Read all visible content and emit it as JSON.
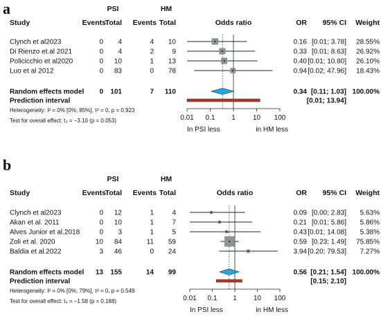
{
  "chart_data": [
    {
      "type": "forest",
      "panel_label": "a",
      "group1": "PSI",
      "group2": "HM",
      "headers": {
        "study": "Study",
        "events1": "Events",
        "total1": "Total",
        "events2": "Events",
        "total2": "Total",
        "plot": "Odds ratio",
        "or": "OR",
        "ci": "95% CI",
        "weight": "Weight"
      },
      "studies": [
        {
          "name": "Clynch et al2023",
          "e1": "0",
          "t1": "4",
          "e2": "4",
          "t2": "10",
          "or": 0.16,
          "lo": 0.01,
          "hi": 3.78,
          "or_text": "0.16",
          "ci_text": "[0.01;  3.78]",
          "weight_text": "28.55%",
          "weight": 28.55
        },
        {
          "name": "Di Rienzo et.al 2021",
          "e1": "0",
          "t1": "4",
          "e2": "2",
          "t2": "9",
          "or": 0.33,
          "lo": 0.01,
          "hi": 8.63,
          "or_text": "0.33",
          "ci_text": "[0.01;  8.63]",
          "weight_text": "26.92%",
          "weight": 26.92
        },
        {
          "name": "Policicchio et al2020",
          "e1": "0",
          "t1": "10",
          "e2": "1",
          "t2": "13",
          "or": 0.4,
          "lo": 0.01,
          "hi": 10.8,
          "or_text": "0.40",
          "ci_text": "[0.01; 10.80]",
          "weight_text": "26.10%",
          "weight": 26.1
        },
        {
          "name": "Luo et al  2012",
          "e1": "0",
          "t1": "83",
          "e2": "0",
          "t2": "78",
          "or": 0.94,
          "lo": 0.02,
          "hi": 47.96,
          "or_text": "0.94",
          "ci_text": "[0.02; 47.96]",
          "weight_text": "18.43%",
          "weight": 18.43
        }
      ],
      "summary": {
        "label": "Random effects model",
        "e1": "0",
        "t1": "101",
        "e2": "7",
        "t2": "110",
        "or": 0.34,
        "lo": 0.11,
        "hi": 1.03,
        "or_text": "0.34",
        "ci_text": "[0.11;  1.03]",
        "weight_text": "100.00%"
      },
      "prediction": {
        "label": "Prediction interval",
        "lo": 0.01,
        "hi": 13.94,
        "ci_text": "[0.01; 13.94]"
      },
      "heterogeneity": "Heterogeneity: I² = 0% [0%; 85%], τ² = 0, p = 0.923",
      "overall_test": "Test for overall effect: t₃ = −3.10 (p = 0.053)",
      "ticks": [
        0.01,
        0.1,
        1,
        10,
        100
      ],
      "tick_labels": [
        "0.01",
        "0.1",
        "1",
        "10",
        "100"
      ],
      "favours_left": "In PSI  less",
      "favours_right": "in HM  less",
      "x_scale": "log",
      "xlim": [
        0.01,
        100
      ]
    },
    {
      "type": "forest",
      "panel_label": "b",
      "group1": "PSI",
      "group2": "HM",
      "headers": {
        "study": "Study",
        "events1": "Events",
        "total1": "Total",
        "events2": "Events",
        "total2": "Total",
        "plot": "Odds ratio",
        "or": "OR",
        "ci": "95% CI",
        "weight": "Weight"
      },
      "studies": [
        {
          "name": "Clynch et al2023",
          "e1": "0",
          "t1": "12",
          "e2": "1",
          "t2": "4",
          "or": 0.09,
          "lo": 0.003,
          "hi": 2.83,
          "or_text": "0.09",
          "ci_text": "[0.00;  2.83]",
          "weight_text": "5.63%",
          "weight": 5.63
        },
        {
          "name": "Akan et al. 2011",
          "e1": "0",
          "t1": "10",
          "e2": "1",
          "t2": "7",
          "or": 0.21,
          "lo": 0.01,
          "hi": 5.86,
          "or_text": "0.21",
          "ci_text": "[0.01;  5.86]",
          "weight_text": "5.86%",
          "weight": 5.86
        },
        {
          "name": "Alves Junior et al.2018",
          "e1": "0",
          "t1": "3",
          "e2": "1",
          "t2": "5",
          "or": 0.43,
          "lo": 0.01,
          "hi": 14.08,
          "or_text": "0.43",
          "ci_text": "[0.01; 14.08]",
          "weight_text": "5.38%",
          "weight": 5.38
        },
        {
          "name": "Zoli et al. 2020",
          "e1": "10",
          "t1": "84",
          "e2": "11",
          "t2": "59",
          "or": 0.59,
          "lo": 0.23,
          "hi": 1.49,
          "or_text": "0.59",
          "ci_text": "[0.23;  1.49]",
          "weight_text": "75.85%",
          "weight": 75.85
        },
        {
          "name": "Baldia et al.2022",
          "e1": "3",
          "t1": "46",
          "e2": "0",
          "t2": "24",
          "or": 3.94,
          "lo": 0.2,
          "hi": 79.53,
          "or_text": "3.94",
          "ci_text": "[0.20; 79.53]",
          "weight_text": "7.27%",
          "weight": 7.27
        }
      ],
      "summary": {
        "label": "Random effects model",
        "e1": "13",
        "t1": "155",
        "e2": "14",
        "t2": "99",
        "or": 0.56,
        "lo": 0.21,
        "hi": 1.54,
        "or_text": "0.56",
        "ci_text": "[0.21;  1.54]",
        "weight_text": "100.00%"
      },
      "prediction": {
        "label": "Prediction interval",
        "lo": 0.15,
        "hi": 2.1,
        "ci_text": "[0.15;  2.10]"
      },
      "heterogeneity": "Heterogeneity: I² = 0% [0%; 79%], τ² = 0, p = 0.549",
      "overall_test": "Test for overall effect: t₄ = −1.58 (p = 0.188)",
      "ticks": [
        0.01,
        0.1,
        1,
        10,
        100
      ],
      "tick_labels": [
        "0.01",
        "0.1",
        "1",
        "10",
        "100"
      ],
      "favours_left": "In PSI  less",
      "favours_right": "in HM  less",
      "x_scale": "log",
      "xlim": [
        0.01,
        100
      ]
    }
  ],
  "colors": {
    "square": "#8a9496",
    "ci_line": "#222222",
    "diamond_fill": "#2aa7d6",
    "diamond_stroke": "#1b4f8a",
    "prediction": "#a83a2e",
    "dotted": "#555555"
  }
}
